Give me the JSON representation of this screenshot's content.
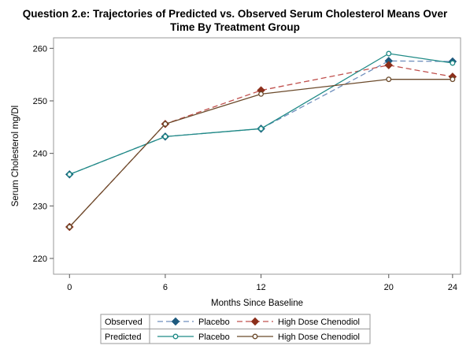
{
  "chart_data": {
    "type": "line",
    "title_line1": "Question 2.e: Trajectories of Predicted vs. Observed Serum Cholesterol Means Over",
    "title_line2": "Time By Treatment Group",
    "xlabel": "Months Since Baseline",
    "ylabel": "Serum Cholesterol mg/Dl",
    "x_ticks": [
      0,
      6,
      12,
      20,
      24
    ],
    "y_ticks": [
      220,
      230,
      240,
      250,
      260
    ],
    "xlim": [
      -1,
      24.5
    ],
    "ylim": [
      217,
      262
    ],
    "legend": {
      "placement": "bottom",
      "rows": [
        {
          "label": "Observed",
          "entries": [
            "Placebo",
            "High Dose Chenodiol"
          ]
        },
        {
          "label": "Predicted",
          "entries": [
            "Placebo",
            "High Dose Chenodiol"
          ]
        }
      ]
    },
    "series": [
      {
        "name": "Placebo",
        "group": "Observed",
        "style": "dashed",
        "line_color": "#6f8fbd",
        "marker": "diamond",
        "marker_color": "#1e5a7e",
        "x": [
          0,
          6,
          12,
          20,
          24
        ],
        "y": [
          236.0,
          243.2,
          244.7,
          257.6,
          257.5
        ]
      },
      {
        "name": "High Dose Chenodiol",
        "group": "Observed",
        "style": "dashed",
        "line_color": "#c0504d",
        "marker": "diamond",
        "marker_color": "#8c2f1b",
        "x": [
          0,
          6,
          12,
          20,
          24
        ],
        "y": [
          226.0,
          245.6,
          252.0,
          256.8,
          254.6
        ]
      },
      {
        "name": "Placebo",
        "group": "Predicted",
        "style": "solid",
        "line_color": "#1f8a86",
        "marker": "circle",
        "marker_color": "#1f8a86",
        "x": [
          0,
          6,
          12,
          20,
          24
        ],
        "y": [
          236.0,
          243.2,
          244.7,
          259.0,
          257.2
        ]
      },
      {
        "name": "High Dose Chenodiol",
        "group": "Predicted",
        "style": "solid",
        "line_color": "#6b4a2b",
        "marker": "circle",
        "marker_color": "#6b4a2b",
        "x": [
          0,
          6,
          12,
          20,
          24
        ],
        "y": [
          226.0,
          245.6,
          251.3,
          254.1,
          254.1
        ]
      }
    ]
  }
}
